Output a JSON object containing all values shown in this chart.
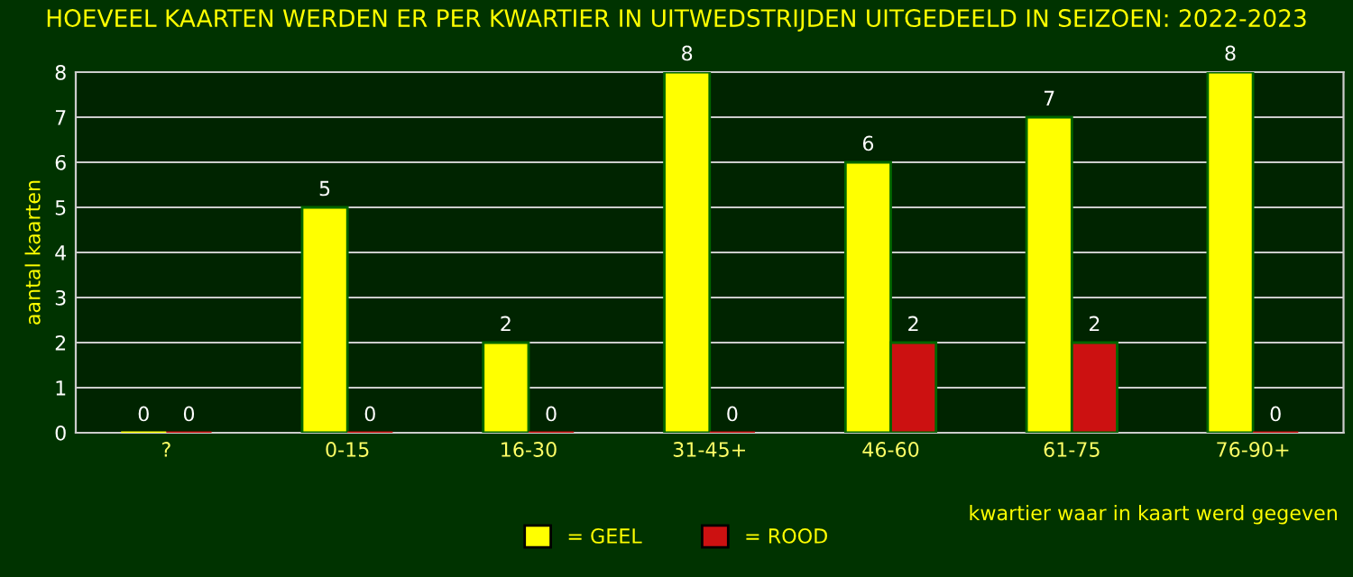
{
  "chart_data": {
    "type": "bar",
    "title": "HOEVEEL KAARTEN WERDEN ER PER KWARTIER IN UITWEDSTRIJDEN UITGEDEELD IN SEIZOEN: 2022-2023",
    "xlabel": "kwartier waar in kaart werd gegeven",
    "ylabel": "aantal kaarten",
    "categories": [
      "?",
      "0-15",
      "16-30",
      "31-45+",
      "46-60",
      "61-75",
      "76-90+"
    ],
    "series": [
      {
        "name": "= GEEL",
        "color": "#ffff00",
        "values": [
          0,
          5,
          2,
          8,
          6,
          7,
          8
        ]
      },
      {
        "name": "= ROOD",
        "color": "#cc1111",
        "values": [
          0,
          0,
          0,
          0,
          2,
          2,
          0
        ]
      }
    ],
    "ylim": [
      0,
      8
    ],
    "yticks": [
      0,
      1,
      2,
      3,
      4,
      5,
      6,
      7,
      8
    ],
    "grid": "y",
    "legend": "bottom",
    "data_labels": true
  }
}
